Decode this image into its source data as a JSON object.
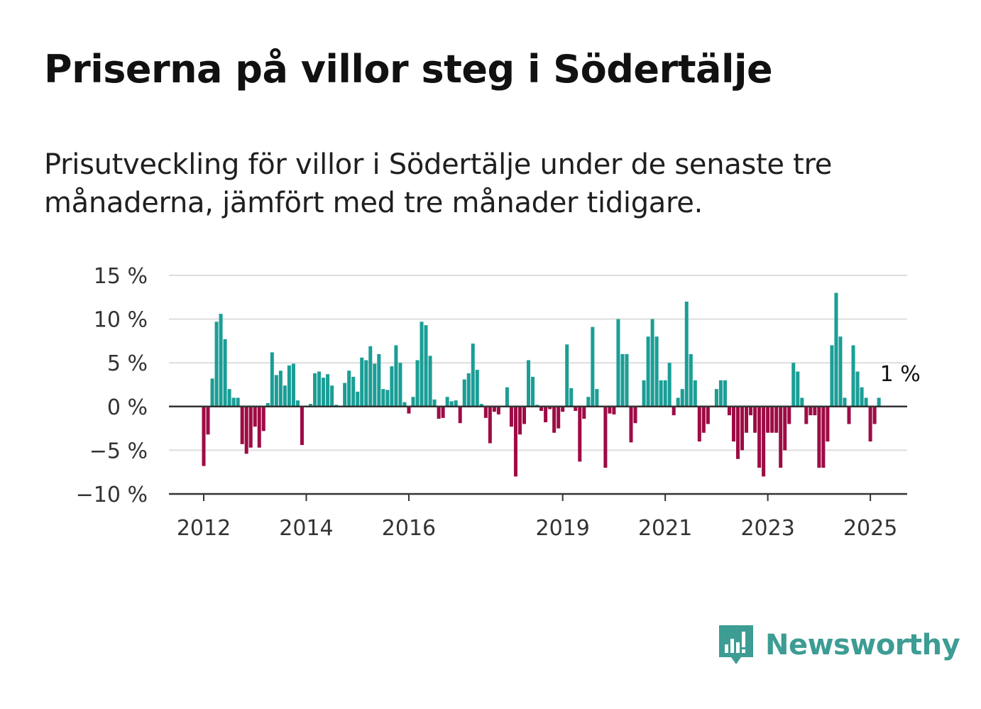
{
  "title": "Priserna på villor steg i Södertälje",
  "subtitle": "Prisutveckling för villor i Södertälje under de senaste tre månaderna, jämfört med tre månader tidigare.",
  "logo": {
    "text": "Newsworthy",
    "icon": "newsworthy-logo-icon"
  },
  "colors": {
    "positive": "#1a9e96",
    "negative": "#9e0b45",
    "grid": "#dddddd",
    "axis": "#333333"
  },
  "chart_data": {
    "type": "bar",
    "title": "Priserna på villor steg i Södertälje",
    "subtitle": "Prisutveckling för villor i Södertälje under de senaste tre månaderna, jämfört med tre månader tidigare.",
    "xlabel": "",
    "ylabel": "",
    "unit": "%",
    "ylim": [
      -10,
      15
    ],
    "y_ticks": [
      15,
      10,
      5,
      0,
      -5,
      -10
    ],
    "y_tick_labels": [
      "15 %",
      "10 %",
      "5 %",
      "0 %",
      "−5 %",
      "−10 %"
    ],
    "x_tick_labels": [
      {
        "label": "2012",
        "date": "2012-01"
      },
      {
        "label": "2014",
        "date": "2014-01"
      },
      {
        "label": "2016",
        "date": "2016-01"
      },
      {
        "label": "2019",
        "date": "2019-01"
      },
      {
        "label": "2021",
        "date": "2021-01"
      },
      {
        "label": "2023",
        "date": "2023-01"
      },
      {
        "label": "2025",
        "date": "2025-01"
      }
    ],
    "start": "2012-01",
    "end": "2025-02",
    "end_label": "1 %",
    "grid": true,
    "values": [
      -6.8,
      -3.2,
      3.2,
      9.7,
      10.6,
      7.7,
      2.0,
      1.0,
      1.0,
      -4.3,
      -5.4,
      -4.7,
      -2.3,
      -4.7,
      -2.8,
      0.4,
      6.2,
      3.6,
      4.1,
      2.4,
      4.7,
      4.9,
      0.7,
      -4.4,
      0.0,
      0.3,
      3.8,
      4.0,
      3.3,
      3.7,
      2.4,
      0.2,
      0.0,
      2.7,
      4.1,
      3.4,
      1.7,
      5.6,
      5.3,
      6.9,
      4.9,
      6.0,
      2.0,
      1.9,
      4.6,
      7.0,
      5.0,
      0.5,
      -0.8,
      1.1,
      5.3,
      9.7,
      9.3,
      5.8,
      0.8,
      -1.4,
      -1.3,
      1.1,
      0.6,
      0.7,
      -1.9,
      3.1,
      3.8,
      7.2,
      4.2,
      0.3,
      -1.3,
      -4.2,
      -0.6,
      -0.9,
      0.0,
      2.2,
      -2.3,
      -8.0,
      -3.2,
      -2.0,
      5.3,
      3.4,
      0.2,
      -0.5,
      -1.8,
      -0.3,
      -3.0,
      -2.5,
      -0.6,
      7.1,
      2.1,
      -0.5,
      -6.3,
      -1.4,
      1.1,
      9.1,
      2.0,
      0.0,
      -7.0,
      -0.8,
      -0.9,
      10.0,
      6.0,
      6.0,
      -4.1,
      -1.9,
      0.0,
      3.0,
      8.0,
      10.0,
      8.0,
      3.0,
      3.0,
      5.0,
      -1.0,
      1.0,
      2.0,
      12.0,
      6.0,
      3.0,
      -4.0,
      -3.0,
      -2.0,
      0.0,
      2.0,
      3.0,
      3.0,
      -1.0,
      -4.0,
      -6.0,
      -5.0,
      -3.0,
      -1.0,
      -3.0,
      -7.0,
      -8.0,
      -3.0,
      -3.0,
      -3.0,
      -7.0,
      -5.0,
      -2.0,
      5.0,
      4.0,
      1.0,
      -2.0,
      -1.0,
      -1.0,
      -7.0,
      -7.0,
      -4.0,
      7.0,
      13.0,
      8.0,
      1.0,
      -2.0,
      7.0,
      4.0,
      2.2,
      1.0,
      -4.0,
      -2.0,
      1.0
    ]
  }
}
